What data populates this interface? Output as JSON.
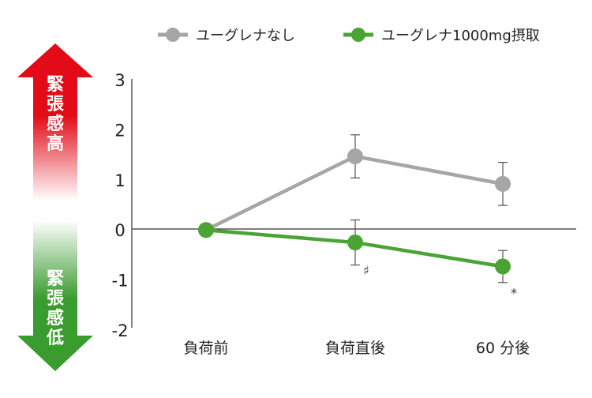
{
  "chart_data": {
    "type": "line",
    "categories": [
      "負荷前",
      "負荷直後",
      "60 分後"
    ],
    "ylim": [
      -2,
      3
    ],
    "yticks": [
      -2,
      -1,
      0,
      1,
      2,
      3
    ],
    "grid": false,
    "legend_position": "top",
    "series": [
      {
        "name": "ユーグレナなし",
        "color": "#a6a6a6",
        "values": [
          0,
          1.47,
          0.92
        ],
        "errors": [
          0,
          0.43,
          0.43
        ]
      },
      {
        "name": "ユーグレナ1000mg摂取",
        "color": "#4aa334",
        "values": [
          0,
          -0.25,
          -0.73
        ],
        "errors": [
          0,
          0.45,
          0.32
        ]
      }
    ],
    "annotations": [
      {
        "text": "♯",
        "category": 1,
        "y": -0.8
      },
      {
        "text": "*",
        "category": 2,
        "y": -1.25
      }
    ],
    "side_arrow": {
      "top_label": "緊張感高",
      "bottom_label": "緊張感低",
      "top_color": "#e30b17",
      "bottom_color": "#3a9b2f"
    }
  }
}
